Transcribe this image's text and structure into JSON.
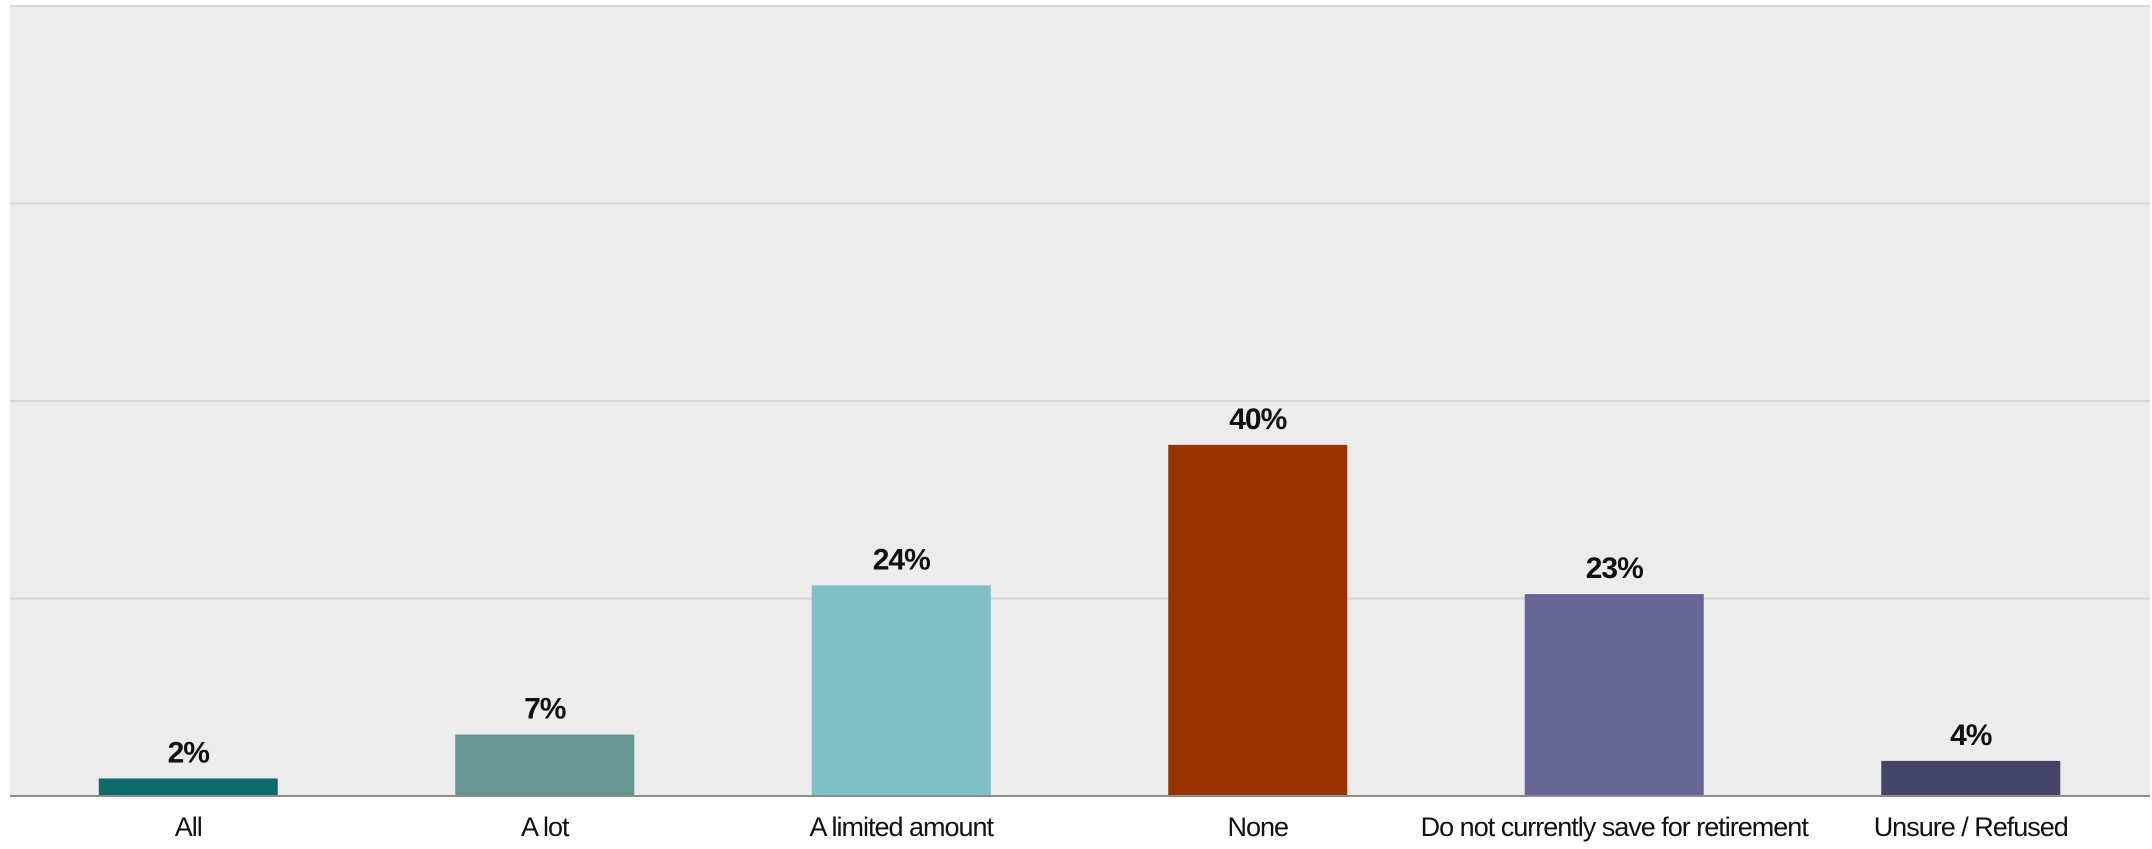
{
  "chart_data": {
    "type": "bar",
    "categories": [
      "All",
      "A lot",
      "A limited amount",
      "None",
      "Do not currently save for retirement",
      "Unsure / Refused"
    ],
    "values": [
      2,
      7,
      24,
      40,
      23,
      4
    ],
    "data_labels": [
      "2%",
      "7%",
      "24%",
      "40%",
      "23%",
      "4%"
    ],
    "colors": [
      "#0f6b6b",
      "#659694",
      "#7fc0c7",
      "#993300",
      "#676697",
      "#444466"
    ],
    "title": "",
    "xlabel": "",
    "ylabel": "",
    "ylim": [
      0,
      90
    ],
    "y_gridlines": [
      0,
      22.5,
      45,
      67.5,
      90
    ],
    "grid": true,
    "legend": "none",
    "background": "#ececec"
  }
}
